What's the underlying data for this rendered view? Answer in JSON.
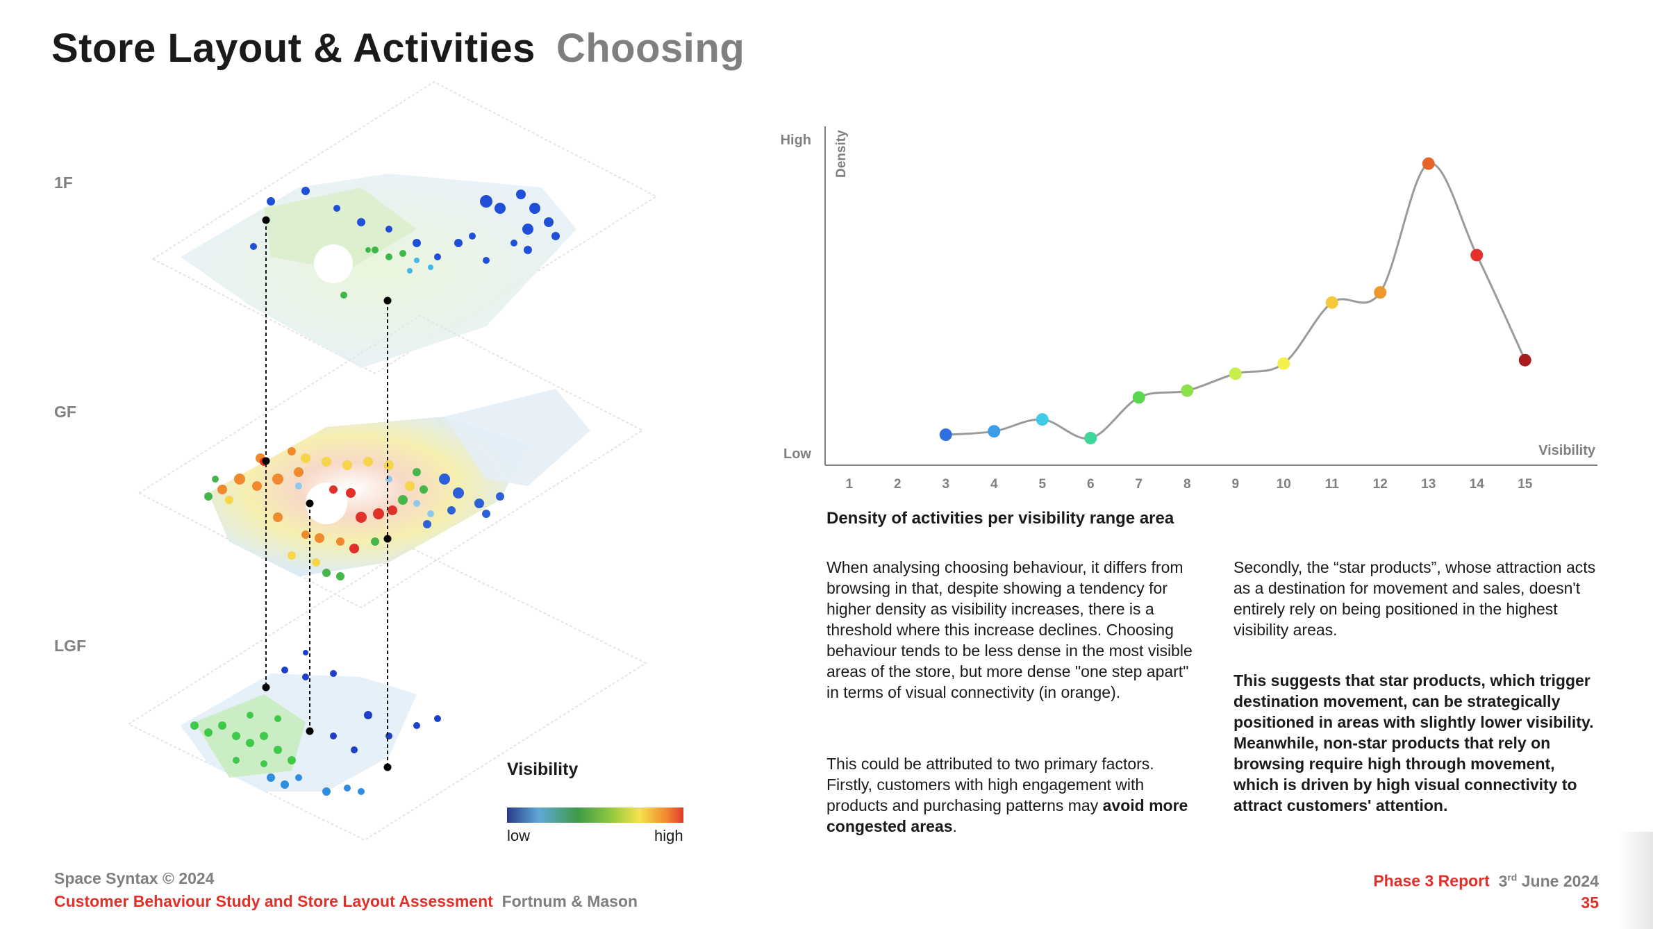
{
  "page": {
    "title": "Store Layout & Activities",
    "subtitle": "Choosing"
  },
  "floors": {
    "labels": [
      "1F",
      "GF",
      "LGF"
    ]
  },
  "legend": {
    "title": "Visibility",
    "low": "low",
    "high": "high"
  },
  "chart_data": {
    "type": "line",
    "title": "",
    "ylabel": "Density",
    "xlabel": "Visibility",
    "y_low_label": "Low",
    "y_high_label": "High",
    "x": [
      1,
      2,
      3,
      4,
      5,
      6,
      7,
      8,
      9,
      10,
      11,
      12,
      13,
      14,
      15
    ],
    "xlim": [
      0.5,
      16.5
    ],
    "ylim": [
      0,
      100
    ],
    "grid": false,
    "points": [
      {
        "x": 3,
        "y": 9,
        "color": "#2f6fe0"
      },
      {
        "x": 4,
        "y": 10,
        "color": "#3a9ee8"
      },
      {
        "x": 5,
        "y": 13.5,
        "color": "#3fcbe8"
      },
      {
        "x": 6,
        "y": 8,
        "color": "#3fd69c"
      },
      {
        "x": 7,
        "y": 20,
        "color": "#5ad64f"
      },
      {
        "x": 8,
        "y": 22,
        "color": "#8ee04a"
      },
      {
        "x": 9,
        "y": 27,
        "color": "#c8ee4a"
      },
      {
        "x": 10,
        "y": 30,
        "color": "#f4f04a"
      },
      {
        "x": 11,
        "y": 48,
        "color": "#f5c93a"
      },
      {
        "x": 12,
        "y": 51,
        "color": "#f0962e"
      },
      {
        "x": 13,
        "y": 89,
        "color": "#e8632a"
      },
      {
        "x": 14,
        "y": 62,
        "color": "#e4302a"
      },
      {
        "x": 15,
        "y": 31,
        "color": "#a81e1e"
      }
    ]
  },
  "chart_caption": "Density of activities per visibility range area",
  "paragraphs": {
    "left_1": "When analysing choosing behaviour, it differs from browsing in that, despite showing a tendency for higher density as visibility increases, there is a threshold where this increase declines. Choosing behaviour tends to be less dense in the most visible areas of the store, but more dense \"one step apart\" in terms of visual connectivity (in orange).",
    "left_2_plain": "This could be attributed to two primary factors. Firstly, customers with high engagement with products and purchasing patterns may ",
    "left_2_bold": "avoid more congested areas",
    "left_2_end": ".",
    "right_1": "Secondly, the “star products”, whose attraction acts as a destination for movement and sales, doesn't entirely rely on being positioned in the highest visibility areas.",
    "right_2": "This suggests that star products, which trigger destination movement, can be strategically positioned in areas with slightly lower visibility. Meanwhile, non-star products that rely on browsing require high through movement, which is driven by high visual connectivity to attract customers' attention."
  },
  "footer": {
    "copyright": "Space Syntax © 2024",
    "study": "Customer Behaviour Study and Store Layout Assessment",
    "client": "Fortnum & Mason",
    "report": "Phase 3 Report",
    "date_day": "3",
    "date_suffix": "rd",
    "date_rest": " June 2024",
    "page_number": "35"
  },
  "colors": {
    "accent_red": "#e0302a",
    "grey_text": "#7f7f7f",
    "chart_line": "#9a9a9a"
  }
}
